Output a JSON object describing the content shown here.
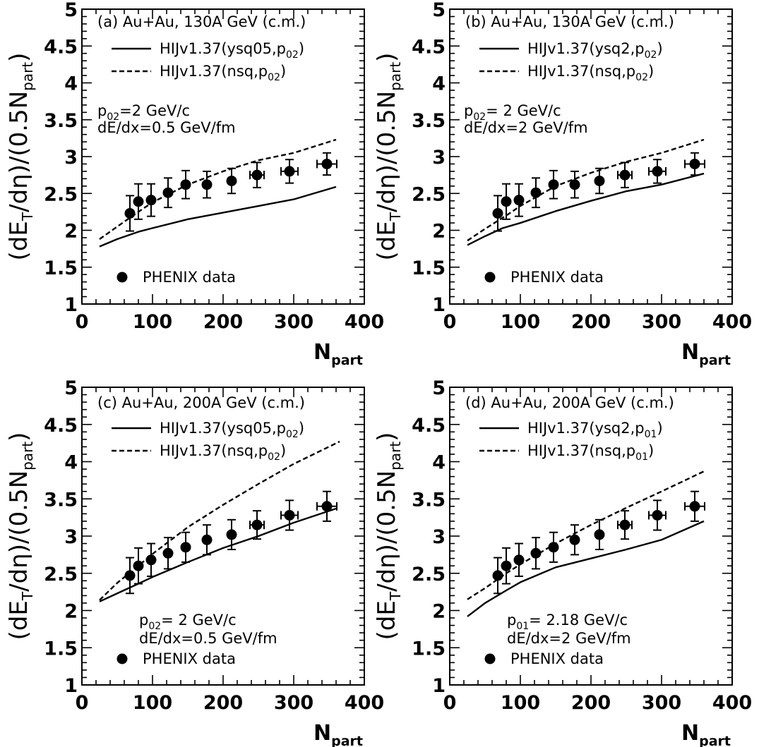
{
  "chart_data": [
    {
      "type": "line",
      "panel": "a",
      "xlim": [
        0,
        400
      ],
      "ylim": [
        1,
        5
      ],
      "xticks": [
        "0",
        "100",
        "200",
        "300",
        "400"
      ],
      "yticks": [
        "1",
        "1.5",
        "2",
        "2.5",
        "3",
        "3.5",
        "4",
        "4.5",
        "5"
      ],
      "xlabel": {
        "main": "N",
        "sub": "part"
      },
      "ylabel": {
        "pre": "(dE",
        "sub1": "T",
        "mid": "/dη)/(0.5N",
        "sub2": "part",
        "post": ")"
      },
      "legend_position": "top-left",
      "title": "(a) Au+Au, 130A GeV (c.m.)",
      "series": [
        {
          "label": {
            "pre": "HIJv1.37(ysq05,p",
            "sub": "02",
            "post": ")"
          },
          "style": "solid",
          "x": [
            25,
            50,
            80,
            100,
            150,
            200,
            250,
            300,
            360
          ],
          "y": [
            1.78,
            1.88,
            1.98,
            2.03,
            2.15,
            2.24,
            2.33,
            2.42,
            2.59
          ]
        },
        {
          "label": {
            "pre": "HIJv1.37(nsq,p",
            "sub": "02",
            "post": ")"
          },
          "style": "dashed",
          "x": [
            25,
            50,
            80,
            100,
            150,
            200,
            250,
            300,
            360
          ],
          "y": [
            1.88,
            2.05,
            2.25,
            2.38,
            2.62,
            2.8,
            2.95,
            3.05,
            3.23
          ]
        },
        {
          "label": "PHENIX data",
          "style": "points",
          "x": [
            68,
            80,
            98,
            122,
            147,
            177,
            212,
            248,
            294,
            347
          ],
          "y": [
            2.23,
            2.39,
            2.41,
            2.51,
            2.62,
            2.62,
            2.67,
            2.75,
            2.8,
            2.9
          ],
          "yerr": [
            0.24,
            0.24,
            0.22,
            0.2,
            0.19,
            0.18,
            0.17,
            0.17,
            0.16,
            0.15
          ],
          "xerr": [
            0,
            0,
            0,
            0,
            0,
            0,
            0,
            10,
            12,
            14
          ]
        }
      ],
      "annotations": [
        {
          "pre": "p",
          "sub": "02",
          "post": "=2 GeV/c"
        },
        {
          "pre": "dE/dx=0.5 GeV/fm",
          "sub": "",
          "post": ""
        }
      ]
    },
    {
      "type": "line",
      "panel": "b",
      "xlim": [
        0,
        400
      ],
      "ylim": [
        1,
        5
      ],
      "xticks": [
        "0",
        "100",
        "200",
        "300",
        "400"
      ],
      "yticks": [
        "1",
        "1.5",
        "2",
        "2.5",
        "3",
        "3.5",
        "4",
        "4.5",
        "5"
      ],
      "xlabel": {
        "main": "N",
        "sub": "part"
      },
      "ylabel": {
        "pre": "(dE",
        "sub1": "T",
        "mid": "/dη)/(0.5N",
        "sub2": "part",
        "post": ")"
      },
      "legend_position": "top-left",
      "title": "(b) Au+Au, 130A GeV (c.m.)",
      "series": [
        {
          "label": {
            "pre": "HIJv1.37(ysq2,p",
            "sub": "02",
            "post": ")"
          },
          "style": "solid",
          "x": [
            25,
            50,
            75,
            100,
            150,
            200,
            250,
            300,
            360
          ],
          "y": [
            1.8,
            1.92,
            2.03,
            2.1,
            2.26,
            2.4,
            2.53,
            2.62,
            2.77
          ]
        },
        {
          "label": {
            "pre": "HIJv1.37(nsq,p",
            "sub": "02",
            "post": ")"
          },
          "style": "dashed",
          "x": [
            25,
            50,
            80,
            100,
            150,
            200,
            250,
            300,
            360
          ],
          "y": [
            1.86,
            2.02,
            2.2,
            2.33,
            2.6,
            2.78,
            2.93,
            3.05,
            3.23
          ]
        },
        {
          "label": "PHENIX data",
          "style": "points",
          "x": [
            68,
            80,
            98,
            122,
            147,
            177,
            212,
            248,
            294,
            347
          ],
          "y": [
            2.23,
            2.39,
            2.41,
            2.51,
            2.62,
            2.62,
            2.67,
            2.75,
            2.8,
            2.9
          ],
          "yerr": [
            0.24,
            0.24,
            0.22,
            0.2,
            0.19,
            0.18,
            0.17,
            0.17,
            0.16,
            0.15
          ],
          "xerr": [
            0,
            0,
            0,
            0,
            0,
            0,
            0,
            10,
            12,
            14
          ]
        }
      ],
      "annotations": [
        {
          "pre": "p",
          "sub": "02",
          "post": "= 2 GeV/c"
        },
        {
          "pre": "dE/dx=2 GeV/fm",
          "sub": "",
          "post": ""
        }
      ]
    },
    {
      "type": "line",
      "panel": "c",
      "xlim": [
        0,
        400
      ],
      "ylim": [
        1,
        5
      ],
      "xticks": [
        "0",
        "100",
        "200",
        "300",
        "400"
      ],
      "yticks": [
        "1",
        "1.5",
        "2",
        "2.5",
        "3",
        "3.5",
        "4",
        "4.5",
        "5"
      ],
      "xlabel": {
        "main": "N",
        "sub": "part"
      },
      "ylabel": {
        "pre": "(dE",
        "sub1": "T",
        "mid": "/dη)/(0.5N",
        "sub2": "part",
        "post": ")"
      },
      "legend_position": "top-left",
      "title": "(c) Au+Au, 200A GeV (c.m.)",
      "series": [
        {
          "label": {
            "pre": "HIJv1.37(ysq05,p",
            "sub": "02",
            "post": ")"
          },
          "style": "solid",
          "x": [
            25,
            50,
            80,
            100,
            150,
            200,
            250,
            300,
            360
          ],
          "y": [
            2.12,
            2.23,
            2.36,
            2.45,
            2.65,
            2.84,
            3.0,
            3.18,
            3.37
          ]
        },
        {
          "label": {
            "pre": "HIJv1.37(nsq,p",
            "sub": "02",
            "post": ")"
          },
          "style": "dashed",
          "x": [
            25,
            50,
            80,
            100,
            150,
            200,
            250,
            300,
            365
          ],
          "y": [
            2.14,
            2.37,
            2.6,
            2.76,
            3.12,
            3.42,
            3.7,
            3.97,
            4.27
          ]
        },
        {
          "label": "PHENIX data",
          "style": "points",
          "x": [
            68,
            80,
            98,
            122,
            147,
            177,
            212,
            248,
            294,
            347
          ],
          "y": [
            2.47,
            2.6,
            2.68,
            2.77,
            2.85,
            2.95,
            3.02,
            3.15,
            3.28,
            3.4
          ],
          "yerr": [
            0.24,
            0.24,
            0.22,
            0.21,
            0.2,
            0.2,
            0.2,
            0.19,
            0.2,
            0.2
          ],
          "xerr": [
            0,
            0,
            0,
            0,
            0,
            0,
            0,
            10,
            12,
            14
          ]
        }
      ],
      "annotations": [
        {
          "pre": "p",
          "sub": "02",
          "post": "= 2 GeV/c"
        },
        {
          "pre": "dE/dx=0.5 GeV/fm",
          "sub": "",
          "post": ""
        }
      ]
    },
    {
      "type": "line",
      "panel": "d",
      "xlim": [
        0,
        400
      ],
      "ylim": [
        1,
        5
      ],
      "xticks": [
        "0",
        "100",
        "200",
        "300",
        "400"
      ],
      "yticks": [
        "1",
        "1.5",
        "2",
        "2.5",
        "3",
        "3.5",
        "4",
        "4.5",
        "5"
      ],
      "xlabel": {
        "main": "N",
        "sub": "part"
      },
      "ylabel": {
        "pre": "(dE",
        "sub1": "T",
        "mid": "/dη)/(0.5N",
        "sub2": "part",
        "post": ")"
      },
      "legend_position": "top-left",
      "title": "(d) Au+Au, 200A GeV (c.m.)",
      "series": [
        {
          "label": {
            "pre": "HIJv1.37(ysq2,p",
            "sub": "01",
            "post": ")"
          },
          "style": "solid",
          "x": [
            25,
            50,
            80,
            100,
            150,
            200,
            250,
            300,
            360
          ],
          "y": [
            1.92,
            2.1,
            2.27,
            2.38,
            2.58,
            2.7,
            2.82,
            2.95,
            3.2
          ]
        },
        {
          "label": {
            "pre": "HIJv1.37(nsq,p",
            "sub": "01",
            "post": ")"
          },
          "style": "dashed",
          "x": [
            25,
            50,
            80,
            100,
            150,
            200,
            250,
            300,
            360
          ],
          "y": [
            2.15,
            2.3,
            2.5,
            2.62,
            2.9,
            3.15,
            3.38,
            3.6,
            3.87
          ]
        },
        {
          "label": "PHENIX data",
          "style": "points",
          "x": [
            68,
            80,
            98,
            122,
            147,
            177,
            212,
            248,
            294,
            347
          ],
          "y": [
            2.47,
            2.6,
            2.68,
            2.77,
            2.85,
            2.95,
            3.02,
            3.15,
            3.28,
            3.4
          ],
          "yerr": [
            0.24,
            0.24,
            0.22,
            0.21,
            0.2,
            0.2,
            0.2,
            0.19,
            0.2,
            0.2
          ],
          "xerr": [
            0,
            0,
            0,
            0,
            0,
            0,
            0,
            10,
            12,
            14
          ]
        }
      ],
      "annotations": [
        {
          "pre": "p",
          "sub": "01",
          "post": "= 2.18 GeV/c"
        },
        {
          "pre": "dE/dx=2 GeV/fm",
          "sub": "",
          "post": ""
        }
      ]
    }
  ]
}
